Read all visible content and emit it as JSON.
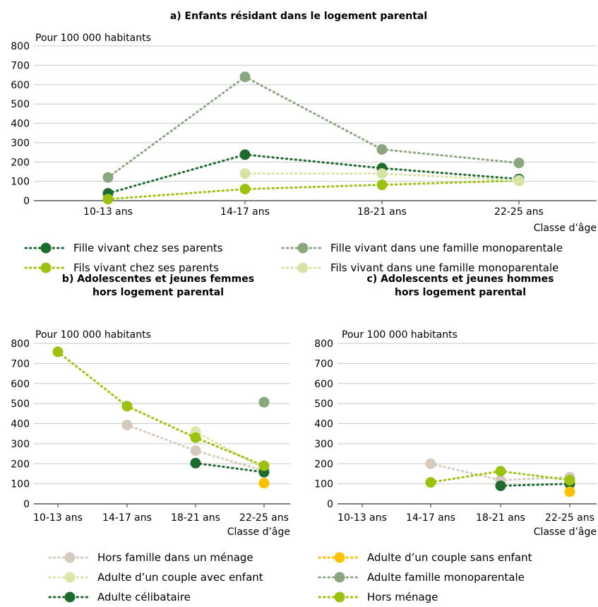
{
  "colors": {
    "fille_parents": "#1e6b2e",
    "fille_mono": "#8aa67d",
    "fils_parents": "#9bc20f",
    "fils_mono": "#d6e3a6",
    "hors_famille": "#d6c9bd",
    "couple_sans": "#ffc000",
    "couple_avec": "#dbe7aa",
    "famille_mono": "#8aa67d",
    "celibataire": "#1e6b2e",
    "hors_menage": "#9bc20f",
    "grid": "#c8c8c8",
    "axis": "#333333"
  },
  "chart_data": [
    {
      "type": "line",
      "title": "a) Enfants résidant dans le logement parental",
      "ylabel": "Pour 100 000 habitants",
      "xlabel": "Classe d’âge",
      "ylim": [
        0,
        800
      ],
      "yticks": [
        "0",
        "100",
        "200",
        "300",
        "400",
        "500",
        "600",
        "700",
        "800"
      ],
      "categories": [
        "10-13 ans",
        "14-17 ans",
        "18-21 ans",
        "22-25 ans"
      ],
      "legend_position": "bottom",
      "series": [
        {
          "name": "Fille vivant chez ses parents",
          "color_key": "fille_parents",
          "values": [
            38,
            238,
            168,
            112
          ]
        },
        {
          "name": "Fille vivant dans une famille monoparentale",
          "color_key": "fille_mono",
          "values": [
            120,
            640,
            265,
            195
          ]
        },
        {
          "name": "Fils vivant chez ses parents",
          "color_key": "fils_parents",
          "values": [
            8,
            60,
            82,
            104
          ]
        },
        {
          "name": "Fils vivant dans une famille monoparentale",
          "color_key": "fils_mono",
          "values": [
            null,
            140,
            140,
            105
          ]
        }
      ]
    },
    {
      "type": "line",
      "title": "b) Adolescentes et jeunes femmes",
      "title2": "hors logement parental",
      "ylabel": "Pour 100 000 habitants",
      "xlabel": "Classe d’âge",
      "ylim": [
        0,
        800
      ],
      "yticks": [
        "0",
        "100",
        "200",
        "300",
        "400",
        "500",
        "600",
        "700",
        "800"
      ],
      "categories": [
        "10-13 ans",
        "14-17 ans",
        "18-21 ans",
        "22-25 ans"
      ],
      "series": [
        {
          "name": "Hors famille dans un ménage",
          "color_key": "hors_famille",
          "values": [
            null,
            393,
            265,
            165
          ]
        },
        {
          "name": "Adulte d’un couple avec enfant",
          "color_key": "couple_avec",
          "values": [
            null,
            null,
            360,
            175
          ]
        },
        {
          "name": "Adulte célibataire",
          "color_key": "celibataire",
          "values": [
            null,
            null,
            203,
            158
          ]
        },
        {
          "name": "Adulte d’un couple sans enfant",
          "color_key": "couple_sans",
          "values": [
            null,
            null,
            null,
            103
          ]
        },
        {
          "name": "Adulte famille monoparentale",
          "color_key": "famille_mono",
          "values": [
            null,
            null,
            null,
            507
          ]
        },
        {
          "name": "Hors ménage",
          "color_key": "hors_menage",
          "values": [
            758,
            487,
            330,
            190
          ]
        }
      ]
    },
    {
      "type": "line",
      "title": "c) Adolescents et jeunes hommes",
      "title2": "hors logement parental",
      "ylabel": "Pour 100 000 habitants",
      "xlabel": "Classe d’âge",
      "ylim": [
        0,
        800
      ],
      "yticks": [
        "0",
        "100",
        "200",
        "300",
        "400",
        "500",
        "600",
        "700",
        "800"
      ],
      "categories": [
        "10-13 ans",
        "14-17 ans",
        "18-21 ans",
        "22-25 ans"
      ],
      "series": [
        {
          "name": "Hors famille dans un ménage",
          "color_key": "hors_famille",
          "values": [
            null,
            200,
            118,
            133
          ]
        },
        {
          "name": "Adulte d’un couple avec enfant",
          "color_key": "couple_avec",
          "values": [
            null,
            null,
            null,
            null
          ]
        },
        {
          "name": "Adulte célibataire",
          "color_key": "celibataire",
          "values": [
            null,
            null,
            90,
            100
          ]
        },
        {
          "name": "Adulte d’un couple sans enfant",
          "color_key": "couple_sans",
          "values": [
            null,
            null,
            null,
            60
          ]
        },
        {
          "name": "Adulte famille monoparentale",
          "color_key": "famille_mono",
          "values": [
            null,
            null,
            null,
            null
          ]
        },
        {
          "name": "Hors ménage",
          "color_key": "hors_menage",
          "values": [
            null,
            107,
            163,
            118
          ]
        }
      ]
    }
  ],
  "legend_a": [
    {
      "label": "Fille vivant chez ses parents",
      "color_key": "fille_parents"
    },
    {
      "label": "Fille vivant dans une famille monoparentale",
      "color_key": "fille_mono"
    },
    {
      "label": "Fils vivant chez ses parents",
      "color_key": "fils_parents"
    },
    {
      "label": "Fils vivant dans une famille monoparentale",
      "color_key": "fils_mono"
    }
  ],
  "legend_bc": [
    {
      "label": "Hors famille dans un ménage",
      "color_key": "hors_famille"
    },
    {
      "label": "Adulte d’un couple sans enfant",
      "color_key": "couple_sans"
    },
    {
      "label": "Adulte d’un couple avec enfant",
      "color_key": "couple_avec"
    },
    {
      "label": "Adulte famille monoparentale",
      "color_key": "famille_mono"
    },
    {
      "label": "Adulte célibataire",
      "color_key": "celibataire"
    },
    {
      "label": "Hors ménage",
      "color_key": "hors_menage"
    }
  ]
}
